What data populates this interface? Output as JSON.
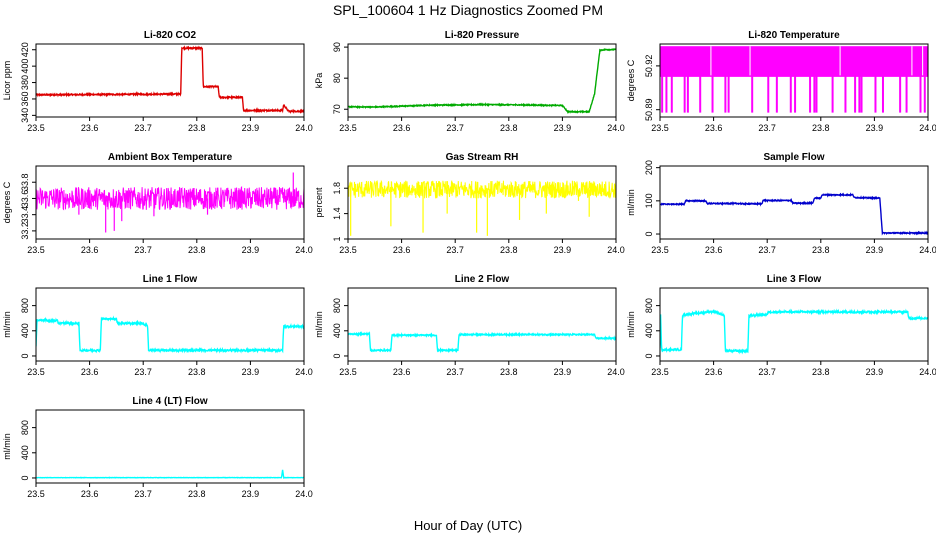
{
  "page": {
    "title": "SPL_100604  1 Hz Diagnostics Zoomed PM",
    "xlabel": "Hour of Day (UTC)"
  },
  "chart_data": [
    {
      "id": "co2",
      "type": "line",
      "title": "Li-820 CO2",
      "ylabel": "Licor ppm",
      "color": "#dd0000",
      "xlim": [
        23.5,
        24.0
      ],
      "ylim": [
        338,
        427
      ],
      "xticks": [
        "23.5",
        "23.6",
        "23.7",
        "23.8",
        "23.9",
        "24.0"
      ],
      "yticks": [
        340,
        360,
        380,
        400,
        420
      ],
      "x": [
        23.5,
        23.77,
        23.772,
        23.81,
        23.812,
        23.84,
        23.842,
        23.885,
        23.887,
        23.96,
        23.962,
        23.97,
        23.972,
        24.0
      ],
      "y": [
        365,
        366,
        422,
        422,
        375,
        375,
        362,
        362,
        346,
        346,
        353,
        346,
        345,
        345
      ],
      "noise": 0.8
    },
    {
      "id": "pressure",
      "type": "line",
      "title": "Li-820 Pressure",
      "ylabel": "kPa",
      "color": "#00aa00",
      "xlim": [
        23.5,
        24.0
      ],
      "ylim": [
        67.5,
        91
      ],
      "xticks": [
        "23.5",
        "23.6",
        "23.7",
        "23.8",
        "23.9",
        "24.0"
      ],
      "yticks": [
        70,
        80,
        90
      ],
      "x": [
        23.5,
        23.55,
        23.65,
        23.75,
        23.82,
        23.9,
        23.91,
        23.95,
        23.96,
        23.97,
        23.98,
        24.0
      ],
      "y": [
        70.8,
        70.7,
        71.3,
        71.5,
        71.4,
        71.2,
        69.2,
        69.2,
        75,
        89,
        89.2,
        89.2
      ],
      "noise": 0.15
    },
    {
      "id": "temp",
      "type": "binary",
      "title": "Li-820 Temperature",
      "ylabel": "degrees C",
      "color": "#ff00ff",
      "xlim": [
        23.5,
        24.0
      ],
      "ylim": [
        50.885,
        50.935
      ],
      "xticks": [
        "23.5",
        "23.6",
        "23.7",
        "23.8",
        "23.9",
        "24.0"
      ],
      "yticks": [
        50.89,
        50.92
      ],
      "levels": [
        50.888,
        50.9335
      ],
      "mid": 50.913,
      "dips": [
        23.504,
        23.512,
        23.522,
        23.546,
        23.552,
        23.575,
        23.598,
        23.622,
        23.628,
        23.672,
        23.702,
        23.718,
        23.744,
        23.752,
        23.78,
        23.788,
        23.792,
        23.822,
        23.846,
        23.864,
        23.872,
        23.876,
        23.902,
        23.916,
        23.948,
        23.96,
        23.986,
        23.994
      ]
    },
    {
      "id": "box",
      "type": "noise",
      "title": "Ambient Box Temperature",
      "ylabel": "degrees C",
      "color": "#ff00ff",
      "xlim": [
        23.5,
        24.0
      ],
      "ylim": [
        33.1,
        34.0
      ],
      "xticks": [
        "23.5",
        "23.6",
        "23.7",
        "23.8",
        "23.9",
        "24.0"
      ],
      "yticks": [
        33.2,
        33.4,
        33.6,
        33.8
      ],
      "base": 33.6,
      "spread": 0.14,
      "spikes": [
        [
          23.63,
          33.18
        ],
        [
          23.646,
          33.2
        ],
        [
          23.58,
          33.4
        ],
        [
          23.66,
          33.32
        ],
        [
          23.72,
          33.38
        ],
        [
          23.82,
          33.4
        ],
        [
          23.98,
          33.92
        ]
      ]
    },
    {
      "id": "rh",
      "type": "noise",
      "title": "Gas Stream RH",
      "ylabel": "percent",
      "color": "#ffff00",
      "xlim": [
        23.5,
        24.0
      ],
      "ylim": [
        1.0,
        2.15
      ],
      "xticks": [
        "23.5",
        "23.6",
        "23.7",
        "23.8",
        "23.9",
        "24.0"
      ],
      "yticks": [
        1.0,
        1.4,
        1.8
      ],
      "base": 1.78,
      "spread": 0.14,
      "spikes": [
        [
          23.505,
          1.05
        ],
        [
          23.58,
          1.2
        ],
        [
          23.64,
          1.1
        ],
        [
          23.685,
          1.4
        ],
        [
          23.74,
          1.1
        ],
        [
          23.76,
          1.05
        ],
        [
          23.82,
          1.3
        ],
        [
          23.87,
          1.4
        ],
        [
          23.93,
          1.6
        ],
        [
          23.95,
          1.35
        ]
      ]
    },
    {
      "id": "sample",
      "type": "line",
      "title": "Sample Flow",
      "ylabel": "ml/min",
      "color": "#0000cc",
      "xlim": [
        23.5,
        24.0
      ],
      "ylim": [
        -15,
        205
      ],
      "xticks": [
        "23.5",
        "23.6",
        "23.7",
        "23.8",
        "23.9",
        "24.0"
      ],
      "yticks": [
        0,
        100,
        200
      ],
      "x": [
        23.5,
        23.545,
        23.548,
        23.585,
        23.588,
        23.65,
        23.652,
        23.69,
        23.692,
        23.745,
        23.748,
        23.785,
        23.788,
        23.8,
        23.802,
        23.86,
        23.862,
        23.91,
        23.915,
        24.0
      ],
      "y": [
        90,
        90,
        100,
        100,
        92,
        92,
        91,
        91,
        101,
        101,
        93,
        93,
        108,
        108,
        118,
        118,
        110,
        108,
        3,
        3
      ],
      "noise": 1.5
    },
    {
      "id": "line1",
      "type": "line",
      "title": "Line 1 Flow",
      "ylabel": "ml/min",
      "color": "#00ffff",
      "xlim": [
        23.5,
        24.0
      ],
      "ylim": [
        -80,
        1080
      ],
      "xticks": [
        "23.5",
        "23.6",
        "23.7",
        "23.8",
        "23.9",
        "24.0"
      ],
      "yticks": [
        0,
        400,
        800
      ],
      "x": [
        23.5,
        23.502,
        23.52,
        23.522,
        23.54,
        23.542,
        23.58,
        23.582,
        23.62,
        23.622,
        23.65,
        23.652,
        23.7,
        23.702,
        23.708,
        23.71,
        23.96,
        23.962,
        24.0
      ],
      "y": [
        150,
        570,
        570,
        560,
        560,
        520,
        520,
        90,
        90,
        590,
        590,
        520,
        520,
        490,
        490,
        90,
        90,
        470,
        470
      ],
      "noise": 14
    },
    {
      "id": "line2",
      "type": "line",
      "title": "Line 2 Flow",
      "ylabel": "ml/min",
      "color": "#00ffff",
      "xlim": [
        23.5,
        24.0
      ],
      "ylim": [
        -80,
        1080
      ],
      "xticks": [
        "23.5",
        "23.6",
        "23.7",
        "23.8",
        "23.9",
        "24.0"
      ],
      "yticks": [
        0,
        400,
        800
      ],
      "x": [
        23.5,
        23.54,
        23.542,
        23.58,
        23.582,
        23.665,
        23.667,
        23.705,
        23.707,
        23.96,
        23.962,
        24.0
      ],
      "y": [
        350,
        350,
        90,
        90,
        330,
        330,
        90,
        90,
        340,
        340,
        280,
        280
      ],
      "noise": 10
    },
    {
      "id": "line3",
      "type": "line",
      "title": "Line 3 Flow",
      "ylabel": "ml/min",
      "color": "#00ffff",
      "xlim": [
        23.5,
        24.0
      ],
      "ylim": [
        -80,
        1080
      ],
      "xticks": [
        "23.5",
        "23.6",
        "23.7",
        "23.8",
        "23.9",
        "24.0"
      ],
      "yticks": [
        0,
        400,
        800
      ],
      "x": [
        23.5,
        23.501,
        23.503,
        23.54,
        23.542,
        23.6,
        23.602,
        23.62,
        23.622,
        23.664,
        23.666,
        23.7,
        23.702,
        23.962,
        23.964,
        24.0
      ],
      "y": [
        120,
        680,
        100,
        100,
        650,
        710,
        710,
        640,
        80,
        80,
        640,
        660,
        700,
        700,
        600,
        600
      ],
      "noise": 15
    },
    {
      "id": "line4",
      "type": "line",
      "title": "Line 4 (LT) Flow",
      "ylabel": "ml/min",
      "color": "#00ffff",
      "xlim": [
        23.5,
        24.0
      ],
      "ylim": [
        -80,
        1080
      ],
      "xticks": [
        "23.5",
        "23.6",
        "23.7",
        "23.8",
        "23.9",
        "24.0"
      ],
      "yticks": [
        0,
        400,
        800
      ],
      "x": [
        23.5,
        23.958,
        23.96,
        23.962,
        24.0
      ],
      "y": [
        5,
        5,
        130,
        5,
        5
      ],
      "noise": 2
    }
  ]
}
